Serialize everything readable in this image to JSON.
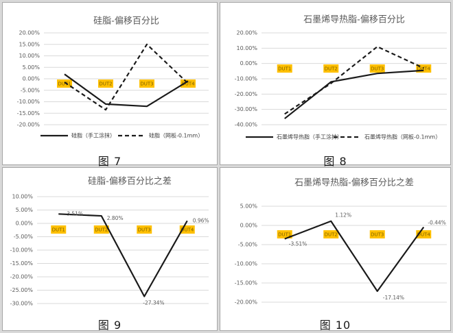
{
  "colors": {
    "line": "#1a1a1a",
    "grid": "#d9d9d9",
    "tick": "#595959",
    "dut_bg": "#ffc000",
    "dut_text": "#7f6000"
  },
  "chart_data": [
    {
      "type": "line",
      "caption": "图 7",
      "title": "硅脂-偏移百分比",
      "categories": [
        "DUT1",
        "DUT2",
        "DUT3",
        "DUT4"
      ],
      "ylim": [
        -0.2,
        0.2
      ],
      "yticks": [
        "20.00%",
        "15.00%",
        "10.00%",
        "5.00%",
        "0.00%",
        "-5.00%",
        "-10.00%",
        "-15.00%",
        "-20.00%"
      ],
      "series": [
        {
          "name": "硅脂（手工涂抹）",
          "dash": "solid",
          "values": [
            0.02,
            -0.11,
            -0.12,
            -0.01
          ]
        },
        {
          "name": "硅脂（网板-0.1mm）",
          "dash": "dashed",
          "values": [
            -0.015,
            -0.135,
            0.15,
            -0.02
          ]
        }
      ],
      "legend": "bottom",
      "grid": true
    },
    {
      "type": "line",
      "caption": "图 8",
      "title": "石墨烯导热脂-偏移百分比",
      "categories": [
        "DUT1",
        "DUT2",
        "DUT3",
        "DUT4"
      ],
      "ylim": [
        -0.4,
        0.2
      ],
      "yticks": [
        "20.00%",
        "10.00%",
        "0.00%",
        "-10.00%",
        "-20.00%",
        "-30.00%",
        "-40.00%"
      ],
      "series": [
        {
          "name": "石墨烯导热脂（手工涂抹）",
          "dash": "solid",
          "values": [
            -0.36,
            -0.12,
            -0.065,
            -0.045
          ]
        },
        {
          "name": "石墨烯导热脂（网板-0.1mm）",
          "dash": "dashed",
          "values": [
            -0.33,
            -0.13,
            0.11,
            -0.03
          ]
        }
      ],
      "legend": "bottom",
      "grid": true
    },
    {
      "type": "line",
      "caption": "图 9",
      "title": "硅脂-偏移百分比之差",
      "categories": [
        "DUT1",
        "DUT2",
        "DUT3",
        "DUT4"
      ],
      "ylim": [
        -0.3,
        0.1
      ],
      "yticks": [
        "10.00%",
        "5.00%",
        "0.00%",
        "-5.00%",
        "-10.00%",
        "-15.00%",
        "-20.00%",
        "-25.00%",
        "-30.00%"
      ],
      "series": [
        {
          "dash": "solid",
          "values": [
            0.0351,
            0.028,
            -0.2734,
            0.0096
          ],
          "labels": [
            "3.51%",
            "2.80%",
            "-27.34%",
            "0.96%"
          ]
        }
      ],
      "grid": true
    },
    {
      "type": "line",
      "caption": "图 10",
      "title": "石墨烯导热脂-偏移百分比之差",
      "categories": [
        "DUT1",
        "DUT2",
        "DUT3",
        "DUT4"
      ],
      "ylim": [
        -0.2,
        0.05
      ],
      "yticks": [
        "5.00%",
        "0.00%",
        "-5.00%",
        "-10.00%",
        "-15.00%",
        "-20.00%"
      ],
      "series": [
        {
          "dash": "solid",
          "values": [
            -0.0351,
            0.0112,
            -0.1714,
            -0.0044
          ],
          "labels": [
            "-3.51%",
            "1.12%",
            "-17.14%",
            "-0.44%"
          ]
        }
      ],
      "grid": true
    }
  ]
}
